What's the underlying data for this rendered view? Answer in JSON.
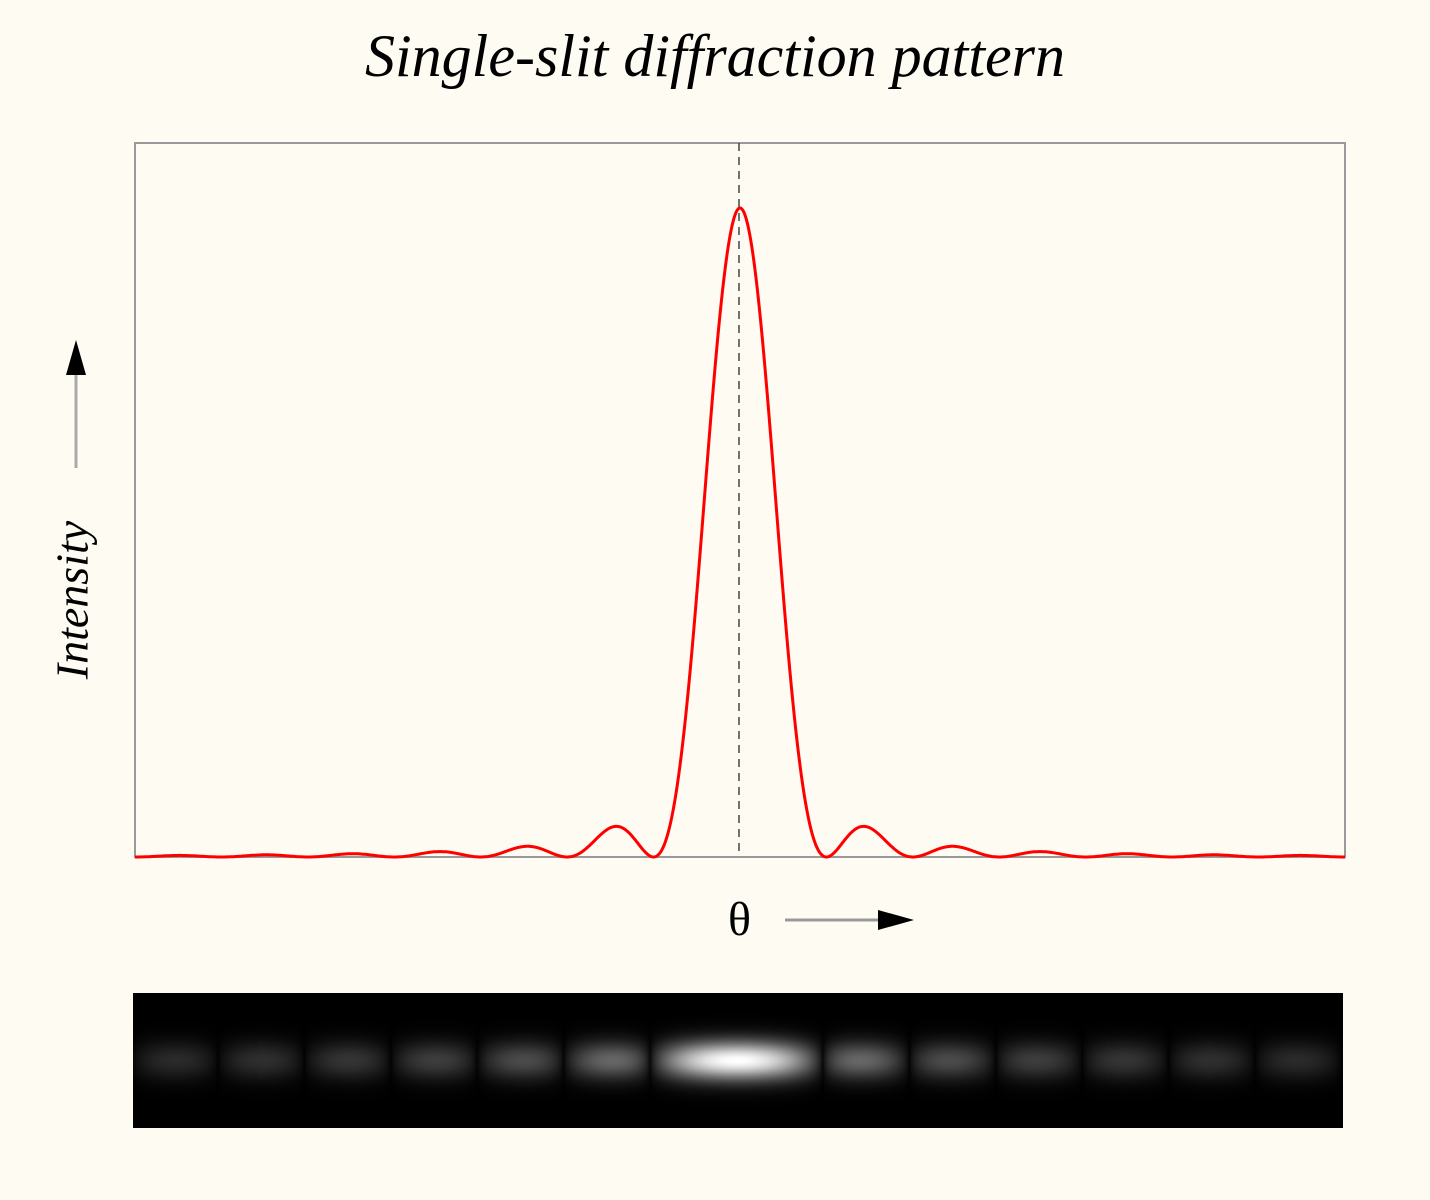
{
  "chart_data": {
    "type": "line",
    "title": "Single-slit diffraction pattern",
    "xlabel": "θ",
    "ylabel": "Intensity",
    "function": "I(θ) = sinc²",
    "x_units": "multiples of first minimum",
    "xlim": [
      -7,
      7
    ],
    "ylim": [
      0,
      1.1
    ],
    "grid": false,
    "center_line": "dashed vertical at θ = 0",
    "key_points": {
      "central_max": [
        0,
        1.0
      ],
      "minima_x": [
        -7,
        -6,
        -5,
        -4,
        -3,
        -2,
        -1,
        1,
        2,
        3,
        4,
        5,
        6,
        7
      ],
      "secondary_maxima": [
        [
          1.43,
          0.047
        ],
        [
          2.46,
          0.016
        ],
        [
          3.47,
          0.008
        ],
        [
          4.48,
          0.005
        ],
        [
          5.48,
          0.003
        ],
        [
          6.49,
          0.002
        ]
      ]
    },
    "line_color": "#ff0000",
    "pattern_strip": "grayscale image of the diffraction fringes below the plot"
  },
  "colors": {
    "background": "#fdfbf2",
    "frame": "#999999",
    "curve": "#ff0000"
  }
}
